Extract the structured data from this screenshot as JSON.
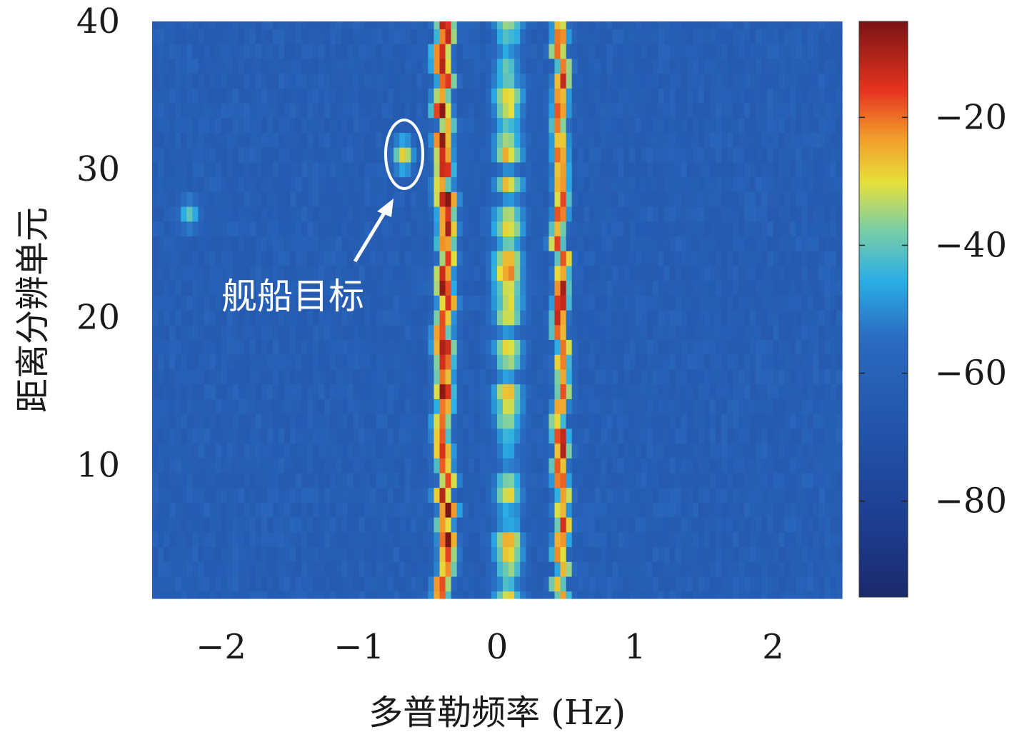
{
  "chart_data": {
    "type": "heatmap",
    "xlabel": "多普勒频率 (Hz)",
    "ylabel": "距离分辨单元",
    "xlim": [
      -2.5,
      2.5
    ],
    "ylim": [
      1,
      40
    ],
    "x_ticks": [
      -2,
      -1,
      0,
      1,
      2
    ],
    "x_tick_labels": [
      "−2",
      "−1",
      "0",
      "1",
      "2"
    ],
    "y_ticks": [
      10,
      20,
      30,
      40
    ],
    "y_tick_labels": [
      "10",
      "20",
      "30",
      "40"
    ],
    "colorbar": {
      "colormap": "jet",
      "range": [
        -95,
        -5
      ],
      "ticks": [
        -20,
        -40,
        -60,
        -80
      ],
      "tick_labels": [
        "−20",
        "−40",
        "−60",
        "−80"
      ]
    },
    "background_level_db": -65,
    "ridges": [
      {
        "center_hz": -0.38,
        "width_hz": 0.14,
        "peak_level_db": -16
      },
      {
        "center_hz": 0.46,
        "width_hz": 0.12,
        "peak_level_db": -18
      },
      {
        "center_hz": 0.08,
        "width_hz": 0.22,
        "peak_level_db": -34
      }
    ],
    "hot_spots": [
      {
        "x_hz": -0.38,
        "range_cell": 28,
        "level_db": -10
      },
      {
        "x_hz": -0.38,
        "range_cell": 18,
        "level_db": -8
      },
      {
        "x_hz": -0.68,
        "range_cell": 31,
        "level_db": -28
      },
      {
        "x_hz": -2.23,
        "range_cell": 27,
        "level_db": -40
      }
    ],
    "annotations": [
      {
        "text": "舰船目标",
        "target_x_hz": -0.68,
        "target_range_cell": 31
      }
    ]
  }
}
